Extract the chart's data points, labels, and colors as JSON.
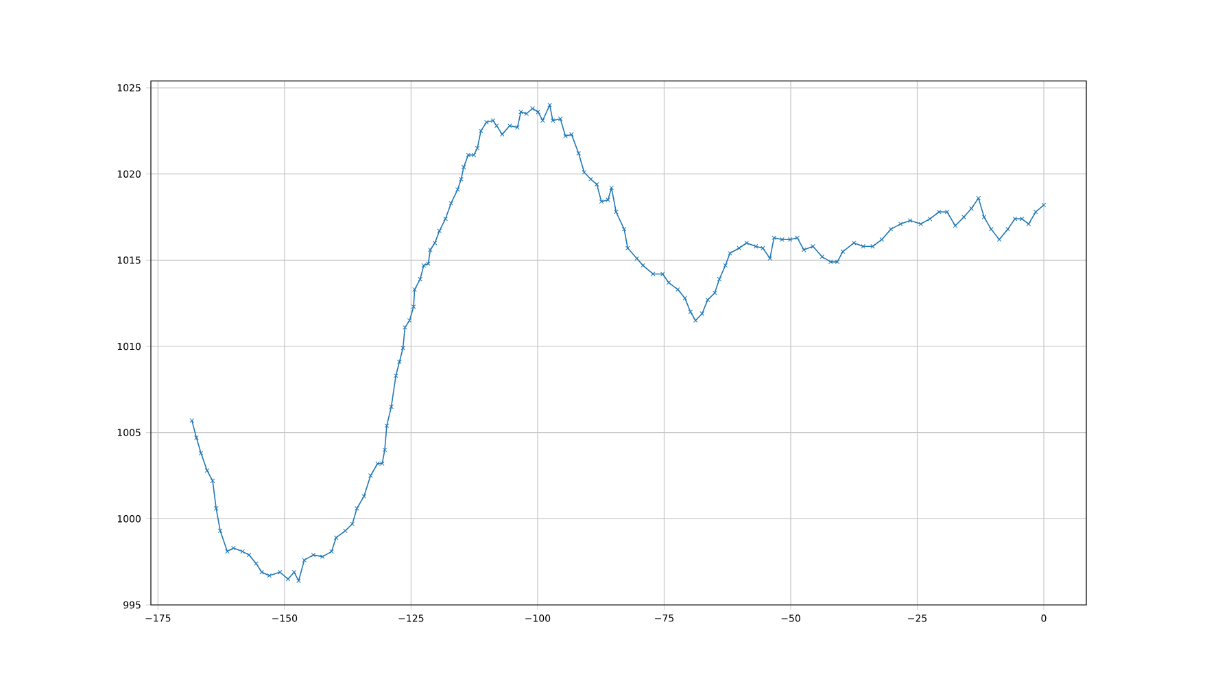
{
  "chart_data": {
    "type": "line",
    "color": "#1f77b4",
    "marker": "cross",
    "grid": true,
    "xlim": [
      -176.4,
      8.4
    ],
    "ylim": [
      995.0,
      1025.4
    ],
    "xticks": [
      {
        "value": -175,
        "label": "−175"
      },
      {
        "value": -150,
        "label": "−150"
      },
      {
        "value": -125,
        "label": "−125"
      },
      {
        "value": -100,
        "label": "−100"
      },
      {
        "value": -75,
        "label": "−75"
      },
      {
        "value": -50,
        "label": "−50"
      },
      {
        "value": -25,
        "label": "−25"
      },
      0
    ],
    "yticks": [
      995,
      1000,
      1005,
      1010,
      1015,
      1020,
      1025
    ],
    "x": [
      -168.3,
      -167.4,
      -166.5,
      -165.3,
      -164.2,
      -163.5,
      -162.7,
      -161.3,
      -160.1,
      -158.3,
      -157,
      -155.6,
      -154.5,
      -153,
      -150.9,
      -149.3,
      -148.1,
      -147.2,
      -146.1,
      -144.3,
      -142.5,
      -140.7,
      -139.8,
      -138,
      -136.6,
      -135.7,
      -134.3,
      -133,
      -131.6,
      -130.7,
      -130.2,
      -129.8,
      -128.9,
      -128,
      -127.3,
      -126.6,
      -126.2,
      -125.3,
      -124.5,
      -124.3,
      -123.2,
      -122.5,
      -121.6,
      -121.2,
      -120.3,
      -119.4,
      -118.2,
      -117.1,
      -115.8,
      -115.1,
      -114.6,
      -113.7,
      -112.6,
      -111.9,
      -111.2,
      -110.1,
      -108.8,
      -108.1,
      -107,
      -105.5,
      -104,
      -103.3,
      -102.2,
      -101,
      -99.9,
      -99,
      -97.6,
      -97,
      -95.5,
      -94.5,
      -93.3,
      -91.9,
      -90.8,
      -89.5,
      -88.3,
      -87.4,
      -86.1,
      -85.4,
      -84.5,
      -82.9,
      -82.2,
      -80.4,
      -79.2,
      -77.2,
      -75.3,
      -74.1,
      -72.3,
      -70.9,
      -69.8,
      -68.8,
      -67.5,
      -66.4,
      -65,
      -64.1,
      -62.9,
      -62,
      -60.2,
      -58.7,
      -56.9,
      -55.5,
      -54.1,
      -53.3,
      -51.7,
      -50.1,
      -48.7,
      -47.4,
      -45.6,
      -43.8,
      -42.1,
      -40.8,
      -39.7,
      -37.5,
      -35.7,
      -33.8,
      -32,
      -30.2,
      -28.3,
      -26.4,
      -24.3,
      -22.5,
      -20.7,
      -19.1,
      -17.5,
      -15.8,
      -14.3,
      -12.9,
      -11.8,
      -10.4,
      -8.8,
      -7.1,
      -5.7,
      -4.3,
      -3,
      -1.6,
      0
    ],
    "values": [
      1005.7,
      1004.7,
      1003.8,
      1002.8,
      1002.2,
      1000.6,
      999.3,
      998.1,
      998.3,
      998.1,
      997.9,
      997.4,
      996.9,
      996.7,
      996.9,
      996.5,
      996.9,
      996.4,
      997.6,
      997.9,
      997.8,
      998.1,
      998.9,
      999.3,
      999.7,
      1000.6,
      1001.3,
      1002.5,
      1003.2,
      1003.2,
      1004.0,
      1005.4,
      1006.5,
      1008.3,
      1009.1,
      1009.9,
      1011.1,
      1011.5,
      1012.3,
      1013.3,
      1013.9,
      1014.7,
      1014.8,
      1015.6,
      1016.0,
      1016.7,
      1017.4,
      1018.3,
      1019.1,
      1019.7,
      1020.4,
      1021.1,
      1021.1,
      1021.5,
      1022.5,
      1023.0,
      1023.1,
      1022.8,
      1022.3,
      1022.8,
      1022.7,
      1023.6,
      1023.5,
      1023.8,
      1023.6,
      1023.1,
      1024.0,
      1023.1,
      1023.2,
      1022.2,
      1022.3,
      1021.2,
      1020.1,
      1019.7,
      1019.4,
      1018.4,
      1018.5,
      1019.2,
      1017.8,
      1016.8,
      1015.7,
      1015.1,
      1014.7,
      1014.2,
      1014.2,
      1013.7,
      1013.3,
      1012.8,
      1012.0,
      1011.5,
      1011.9,
      1012.7,
      1013.1,
      1013.9,
      1014.7,
      1015.4,
      1015.7,
      1016.0,
      1015.8,
      1015.7,
      1015.1,
      1016.3,
      1016.2,
      1016.2,
      1016.3,
      1015.6,
      1015.8,
      1015.2,
      1014.9,
      1014.9,
      1015.5,
      1016.0,
      1015.8,
      1015.8,
      1016.2,
      1016.8,
      1017.1,
      1017.3,
      1017.1,
      1017.4,
      1017.8,
      1017.8,
      1017.0,
      1017.5,
      1018.0,
      1018.6,
      1017.5,
      1016.8,
      1016.2,
      1016.8,
      1017.4,
      1017.4,
      1017.1,
      1017.8,
      1018.2
    ]
  }
}
